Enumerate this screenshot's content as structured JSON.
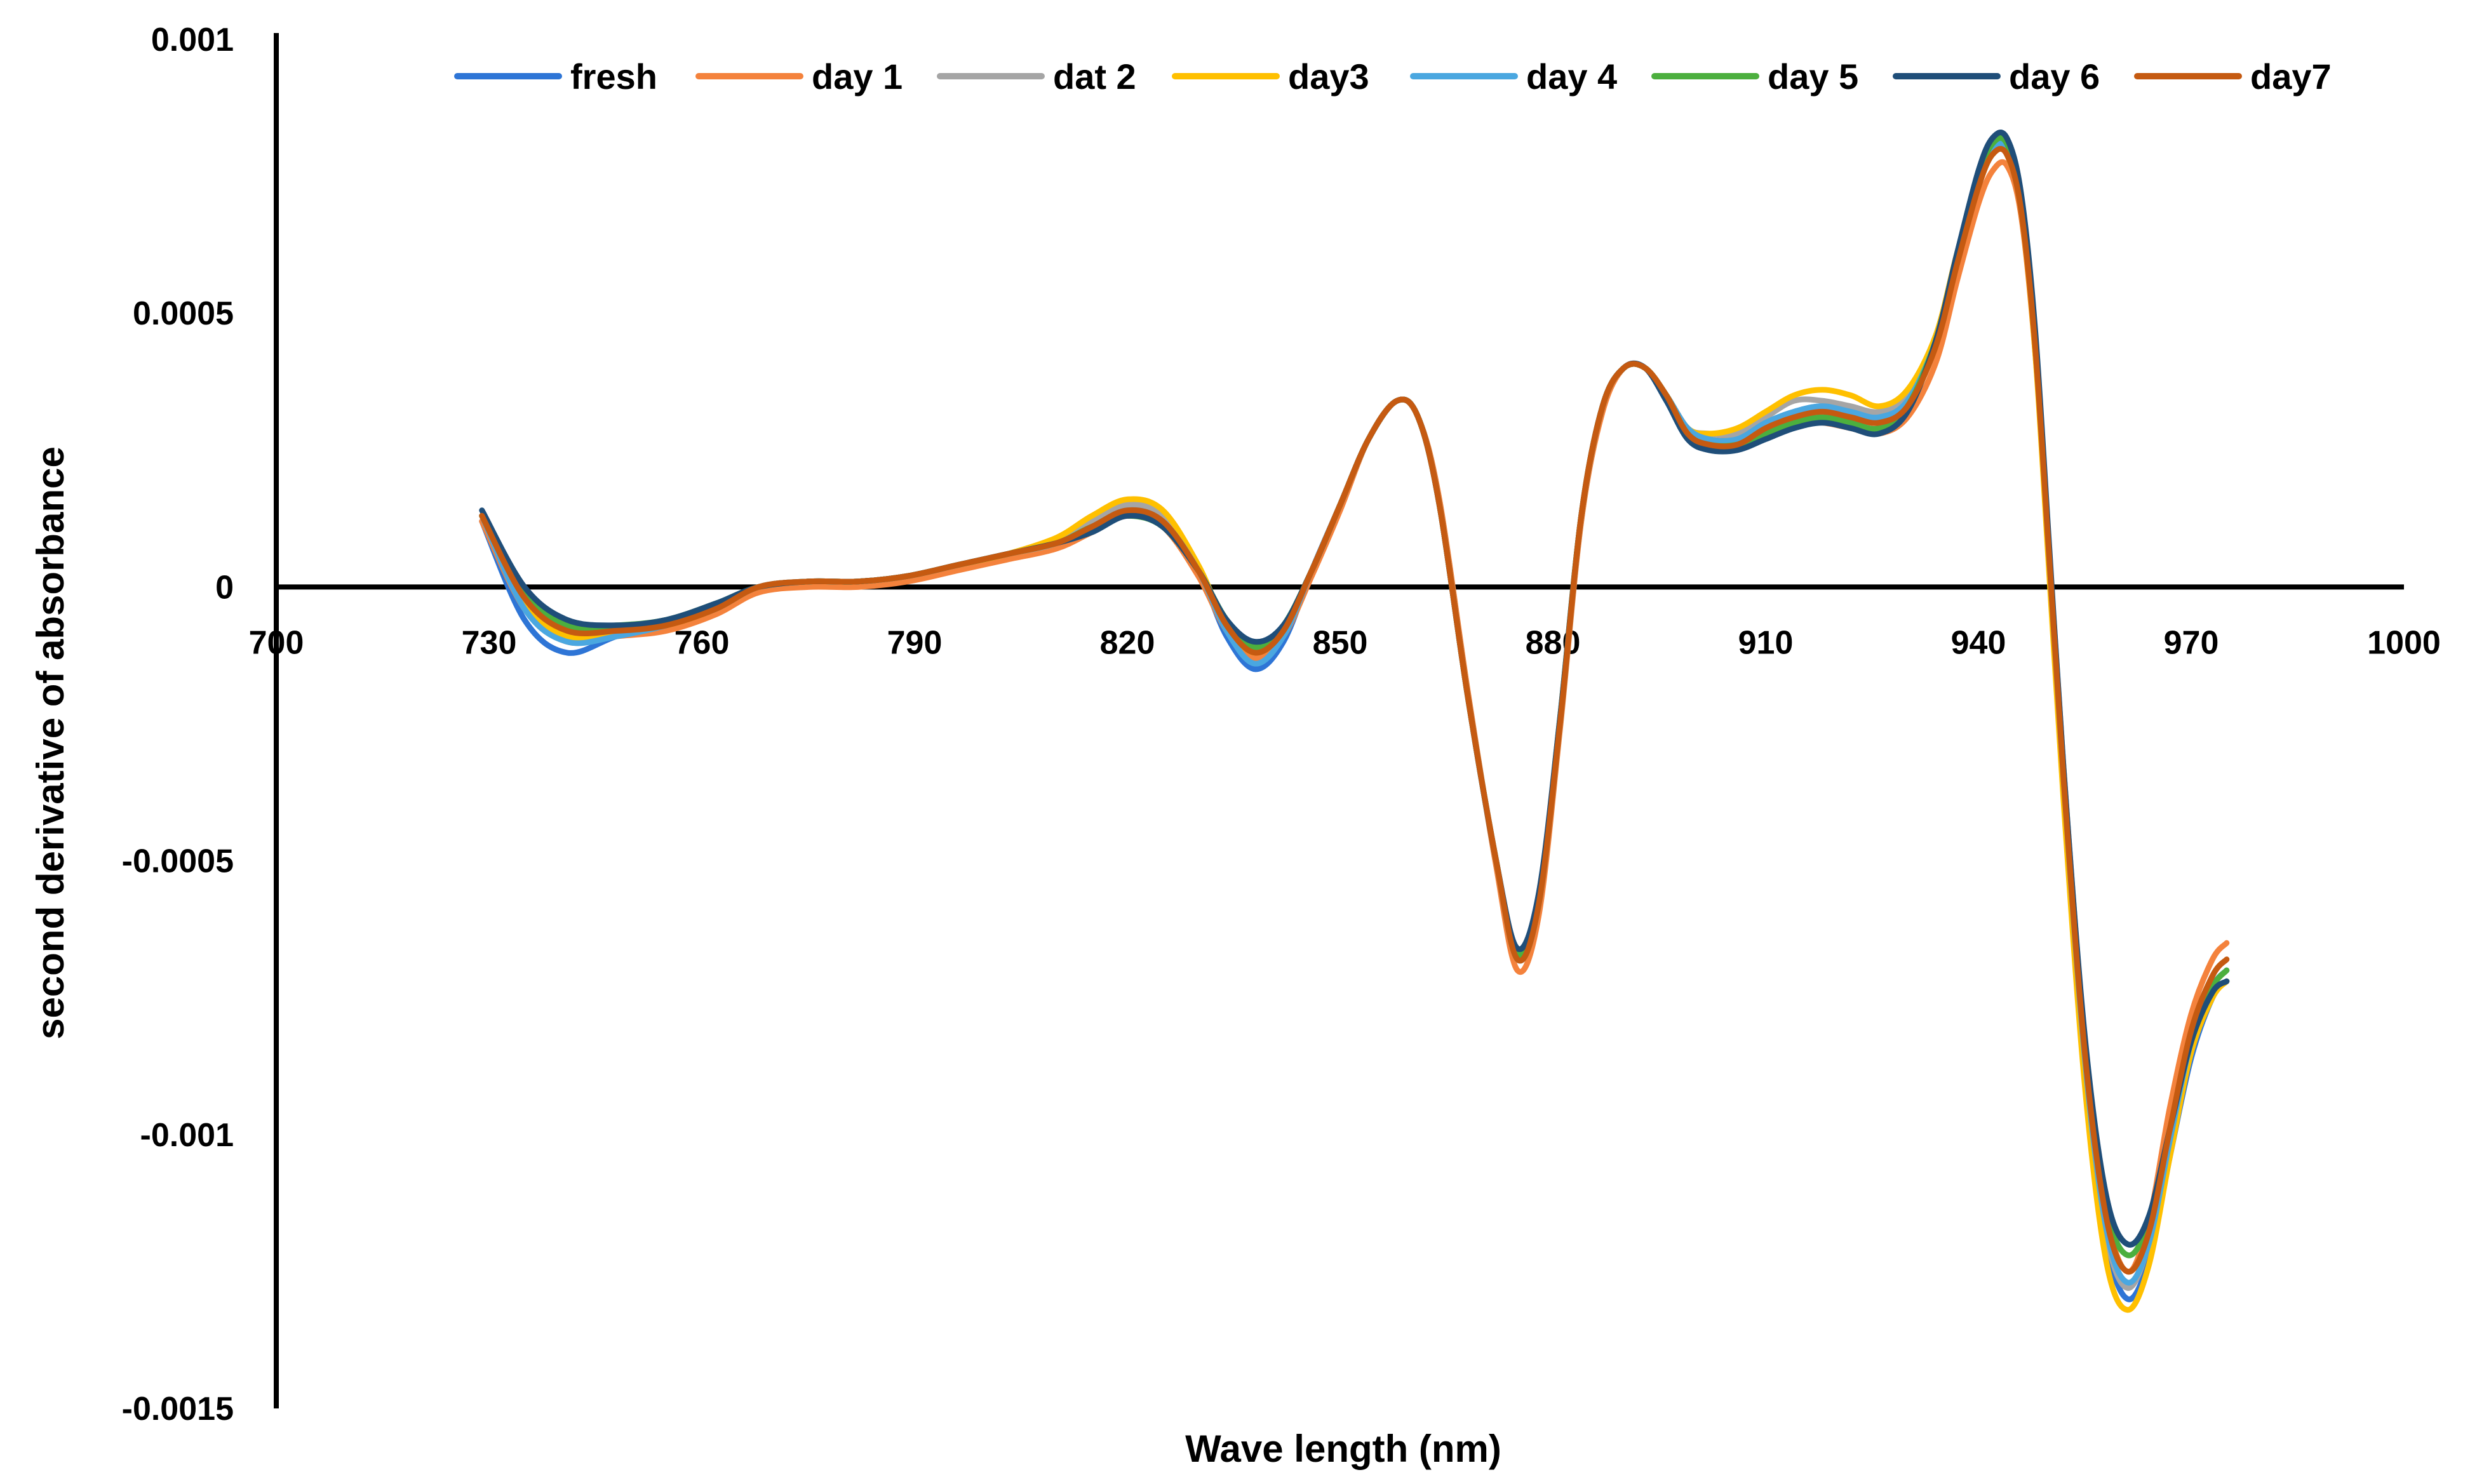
{
  "chart_data": {
    "type": "line",
    "title": "",
    "xlabel": "Wave length (nm)",
    "ylabel": "second derivative of absorbance",
    "xlim": [
      700,
      1000
    ],
    "ylim": [
      -0.0015,
      0.001
    ],
    "x_ticks": [
      700,
      730,
      760,
      790,
      820,
      850,
      880,
      910,
      940,
      970,
      1000
    ],
    "x_tick_labels": [
      "700",
      "730",
      "760",
      "790",
      "820",
      "850",
      "880",
      "910",
      "940",
      "970",
      "1000"
    ],
    "y_ticks": [
      0.001,
      0.0005,
      0,
      -0.0005,
      -0.001,
      -0.0015
    ],
    "y_tick_labels": [
      "0.001",
      "0.0005",
      "0",
      "-0.0005",
      "-0.001",
      "-0.0015"
    ],
    "grid": false,
    "legend_position": "top",
    "x": [
      729,
      735,
      741,
      748,
      755,
      762,
      768,
      775,
      782,
      789,
      796,
      803,
      810,
      815,
      820,
      825,
      830,
      834,
      838,
      842,
      846,
      850,
      854,
      858,
      861,
      864,
      868,
      872,
      875,
      878,
      881,
      884,
      887,
      890,
      893,
      896,
      899,
      902,
      906,
      910,
      914,
      918,
      922,
      926,
      930,
      934,
      937,
      940,
      942,
      944,
      946,
      948,
      950,
      952,
      955,
      958,
      961,
      964,
      967,
      970,
      973,
      975
    ],
    "base_values": [
      0.00013,
      -2e-05,
      -8e-05,
      -8e-05,
      -7e-05,
      -4e-05,
      0.0,
      1e-05,
      1e-05,
      2e-05,
      4e-05,
      6e-05,
      8e-05,
      0.00011,
      0.00014,
      0.00012,
      3e-05,
      -7e-05,
      -0.00012,
      -8e-05,
      3e-05,
      0.00015,
      0.00027,
      0.00034,
      0.00031,
      0.00015,
      -0.0002,
      -0.0005,
      -0.00068,
      -0.00058,
      -0.00025,
      0.00013,
      0.00033,
      0.0004,
      0.0004,
      0.00035,
      0.00029,
      0.00027,
      0.00027,
      0.0003,
      0.00032,
      0.00033,
      0.00032,
      0.00031,
      0.00034,
      0.00045,
      0.0006,
      0.00074,
      0.0008,
      0.0008,
      0.0007,
      0.00045,
      5e-05,
      -0.00035,
      -0.00085,
      -0.00115,
      -0.00124,
      -0.00118,
      -0.001,
      -0.00083,
      -0.00073,
      -0.0007
    ],
    "series": [
      {
        "name": "fresh",
        "color": "#2E75D6",
        "values": [
          0.00012,
          -6e-05,
          -0.00012,
          -9e-05,
          -7e-05,
          -4e-05,
          0.0,
          1e-05,
          1e-05,
          2e-05,
          4e-05,
          6e-05,
          8e-05,
          0.00011,
          0.00014,
          0.00012,
          3e-05,
          -9e-05,
          -0.00015,
          -0.0001,
          3e-05,
          0.00015,
          0.00027,
          0.00034,
          0.00031,
          0.00015,
          -0.0002,
          -0.0005,
          -0.00068,
          -0.00058,
          -0.00025,
          0.00013,
          0.00033,
          0.0004,
          0.0004,
          0.00035,
          0.00029,
          0.00027,
          0.00027,
          0.0003,
          0.00032,
          0.00033,
          0.00032,
          0.00031,
          0.00034,
          0.00045,
          0.0006,
          0.00074,
          0.0008,
          0.0008,
          0.0007,
          0.00045,
          5e-05,
          -0.00035,
          -0.00087,
          -0.00119,
          -0.0013,
          -0.00123,
          -0.00104,
          -0.00086,
          -0.00075,
          -0.00072
        ]
      },
      {
        "name": "day 1",
        "color": "#F4823C",
        "values": [
          0.00012,
          -4e-05,
          -0.0001,
          -9e-05,
          -8e-05,
          -5e-05,
          -1e-05,
          0.0,
          0.0,
          1e-05,
          3e-05,
          5e-05,
          7e-05,
          0.0001,
          0.00013,
          0.00011,
          2e-05,
          -8e-05,
          -0.00013,
          -9e-05,
          2e-05,
          0.00014,
          0.00027,
          0.00034,
          0.00031,
          0.00016,
          -0.00019,
          -0.00051,
          -0.0007,
          -0.0006,
          -0.00026,
          0.00012,
          0.00032,
          0.0004,
          0.0004,
          0.00035,
          0.00029,
          0.00027,
          0.00027,
          0.00029,
          0.0003,
          0.0003,
          0.00029,
          0.00028,
          0.00031,
          0.00041,
          0.00056,
          0.0007,
          0.00076,
          0.00077,
          0.00068,
          0.00043,
          6e-05,
          -0.00033,
          -0.00083,
          -0.00114,
          -0.00125,
          -0.00116,
          -0.00095,
          -0.00078,
          -0.00068,
          -0.00065
        ]
      },
      {
        "name": "dat 2",
        "color": "#A5A5A5",
        "values": [
          0.00013,
          -2e-05,
          -8e-05,
          -8e-05,
          -7e-05,
          -4e-05,
          0.0,
          1e-05,
          1e-05,
          2e-05,
          4e-05,
          6e-05,
          8e-05,
          0.00012,
          0.00015,
          0.00013,
          3e-05,
          -7e-05,
          -0.00012,
          -8e-05,
          3e-05,
          0.00015,
          0.00027,
          0.00034,
          0.00031,
          0.00015,
          -0.0002,
          -0.0005,
          -0.00068,
          -0.00058,
          -0.00025,
          0.00013,
          0.00033,
          0.0004,
          0.0004,
          0.00035,
          0.00029,
          0.00028,
          0.00028,
          0.00031,
          0.00034,
          0.00034,
          0.00033,
          0.00032,
          0.00035,
          0.00045,
          0.0006,
          0.00074,
          0.0008,
          0.00079,
          0.00069,
          0.00044,
          4e-05,
          -0.00036,
          -0.00087,
          -0.00118,
          -0.00128,
          -0.0012,
          -0.00101,
          -0.00083,
          -0.00073,
          -0.0007
        ]
      },
      {
        "name": "day3",
        "color": "#FFC000",
        "values": [
          0.00013,
          -3e-05,
          -9e-05,
          -8e-05,
          -7e-05,
          -4e-05,
          0.0,
          1e-05,
          1e-05,
          2e-05,
          4e-05,
          6e-05,
          9e-05,
          0.00013,
          0.00016,
          0.00014,
          4e-05,
          -7e-05,
          -0.00012,
          -8e-05,
          3e-05,
          0.00015,
          0.00027,
          0.00034,
          0.00031,
          0.00015,
          -0.0002,
          -0.0005,
          -0.00068,
          -0.00058,
          -0.00025,
          0.00013,
          0.00033,
          0.0004,
          0.0004,
          0.00035,
          0.00029,
          0.00028,
          0.00029,
          0.00032,
          0.00035,
          0.00036,
          0.00035,
          0.00033,
          0.00036,
          0.00046,
          0.00061,
          0.00074,
          0.0008,
          0.00079,
          0.00069,
          0.00043,
          2e-05,
          -0.00039,
          -0.00091,
          -0.00123,
          -0.00132,
          -0.00124,
          -0.00104,
          -0.00085,
          -0.00075,
          -0.00072
        ]
      },
      {
        "name": "day 4",
        "color": "#4AA7E0",
        "values": [
          0.00013,
          -4e-05,
          -0.0001,
          -9e-05,
          -7e-05,
          -4e-05,
          0.0,
          1e-05,
          1e-05,
          2e-05,
          4e-05,
          6e-05,
          8e-05,
          0.00011,
          0.00014,
          0.00012,
          3e-05,
          -8e-05,
          -0.00014,
          -9e-05,
          3e-05,
          0.00015,
          0.00027,
          0.00034,
          0.00031,
          0.00015,
          -0.0002,
          -0.0005,
          -0.00068,
          -0.00058,
          -0.00025,
          0.00013,
          0.00033,
          0.0004,
          0.0004,
          0.00035,
          0.00029,
          0.00027,
          0.00027,
          0.0003,
          0.00032,
          0.00033,
          0.00032,
          0.00031,
          0.00034,
          0.00045,
          0.0006,
          0.00074,
          0.0008,
          0.0008,
          0.0007,
          0.00045,
          5e-05,
          -0.00035,
          -0.00086,
          -0.00117,
          -0.00127,
          -0.0012,
          -0.00101,
          -0.00083,
          -0.00073,
          -0.0007
        ]
      },
      {
        "name": "day 5",
        "color": "#4CAF3E",
        "values": [
          0.00013,
          -1e-05,
          -7e-05,
          -7e-05,
          -6e-05,
          -3e-05,
          0.0,
          1e-05,
          1e-05,
          2e-05,
          4e-05,
          6e-05,
          8e-05,
          0.00011,
          0.00013,
          0.00011,
          3e-05,
          -6e-05,
          -0.00011,
          -7e-05,
          3e-05,
          0.00015,
          0.00027,
          0.00034,
          0.00031,
          0.00015,
          -0.0002,
          -0.0005,
          -0.00067,
          -0.00057,
          -0.00024,
          0.00013,
          0.00033,
          0.0004,
          0.0004,
          0.00035,
          0.00028,
          0.00026,
          0.00026,
          0.00028,
          0.0003,
          0.00031,
          0.0003,
          0.00029,
          0.00033,
          0.00045,
          0.0006,
          0.00075,
          0.00081,
          0.00081,
          0.00071,
          0.00046,
          6e-05,
          -0.00034,
          -0.00084,
          -0.00113,
          -0.00122,
          -0.00116,
          -0.00099,
          -0.00082,
          -0.00073,
          -0.0007
        ]
      },
      {
        "name": "day 6",
        "color": "#1F4E79",
        "values": [
          0.00014,
          0.0,
          -6e-05,
          -7e-05,
          -6e-05,
          -3e-05,
          0.0,
          1e-05,
          1e-05,
          2e-05,
          4e-05,
          6e-05,
          8e-05,
          0.0001,
          0.00013,
          0.00011,
          3e-05,
          -6e-05,
          -0.0001,
          -7e-05,
          3e-05,
          0.00015,
          0.00027,
          0.00034,
          0.00031,
          0.00015,
          -0.0002,
          -0.0005,
          -0.00066,
          -0.00056,
          -0.00024,
          0.00013,
          0.00033,
          0.0004,
          0.0004,
          0.00034,
          0.00027,
          0.00025,
          0.00025,
          0.00027,
          0.00029,
          0.0003,
          0.00029,
          0.00028,
          0.00032,
          0.00045,
          0.00061,
          0.00076,
          0.00082,
          0.00082,
          0.00072,
          0.00047,
          7e-05,
          -0.00033,
          -0.00082,
          -0.00111,
          -0.0012,
          -0.00115,
          -0.00099,
          -0.00083,
          -0.00074,
          -0.00072
        ]
      },
      {
        "name": "day7",
        "color": "#C55A11",
        "values": [
          0.00013,
          -2e-05,
          -8e-05,
          -8e-05,
          -7e-05,
          -4e-05,
          0.0,
          1e-05,
          1e-05,
          2e-05,
          4e-05,
          6e-05,
          8e-05,
          0.00011,
          0.00014,
          0.00012,
          3e-05,
          -7e-05,
          -0.00012,
          -8e-05,
          3e-05,
          0.00015,
          0.00027,
          0.00034,
          0.00031,
          0.00015,
          -0.0002,
          -0.0005,
          -0.00068,
          -0.00058,
          -0.00025,
          0.00013,
          0.00033,
          0.0004,
          0.0004,
          0.00035,
          0.00028,
          0.00026,
          0.00026,
          0.00029,
          0.00031,
          0.00032,
          0.00031,
          0.0003,
          0.00033,
          0.00044,
          0.00059,
          0.00073,
          0.00079,
          0.00079,
          0.00069,
          0.00044,
          5e-05,
          -0.00035,
          -0.00085,
          -0.00115,
          -0.00125,
          -0.00118,
          -0.00099,
          -0.00081,
          -0.00071,
          -0.00068
        ]
      }
    ]
  }
}
